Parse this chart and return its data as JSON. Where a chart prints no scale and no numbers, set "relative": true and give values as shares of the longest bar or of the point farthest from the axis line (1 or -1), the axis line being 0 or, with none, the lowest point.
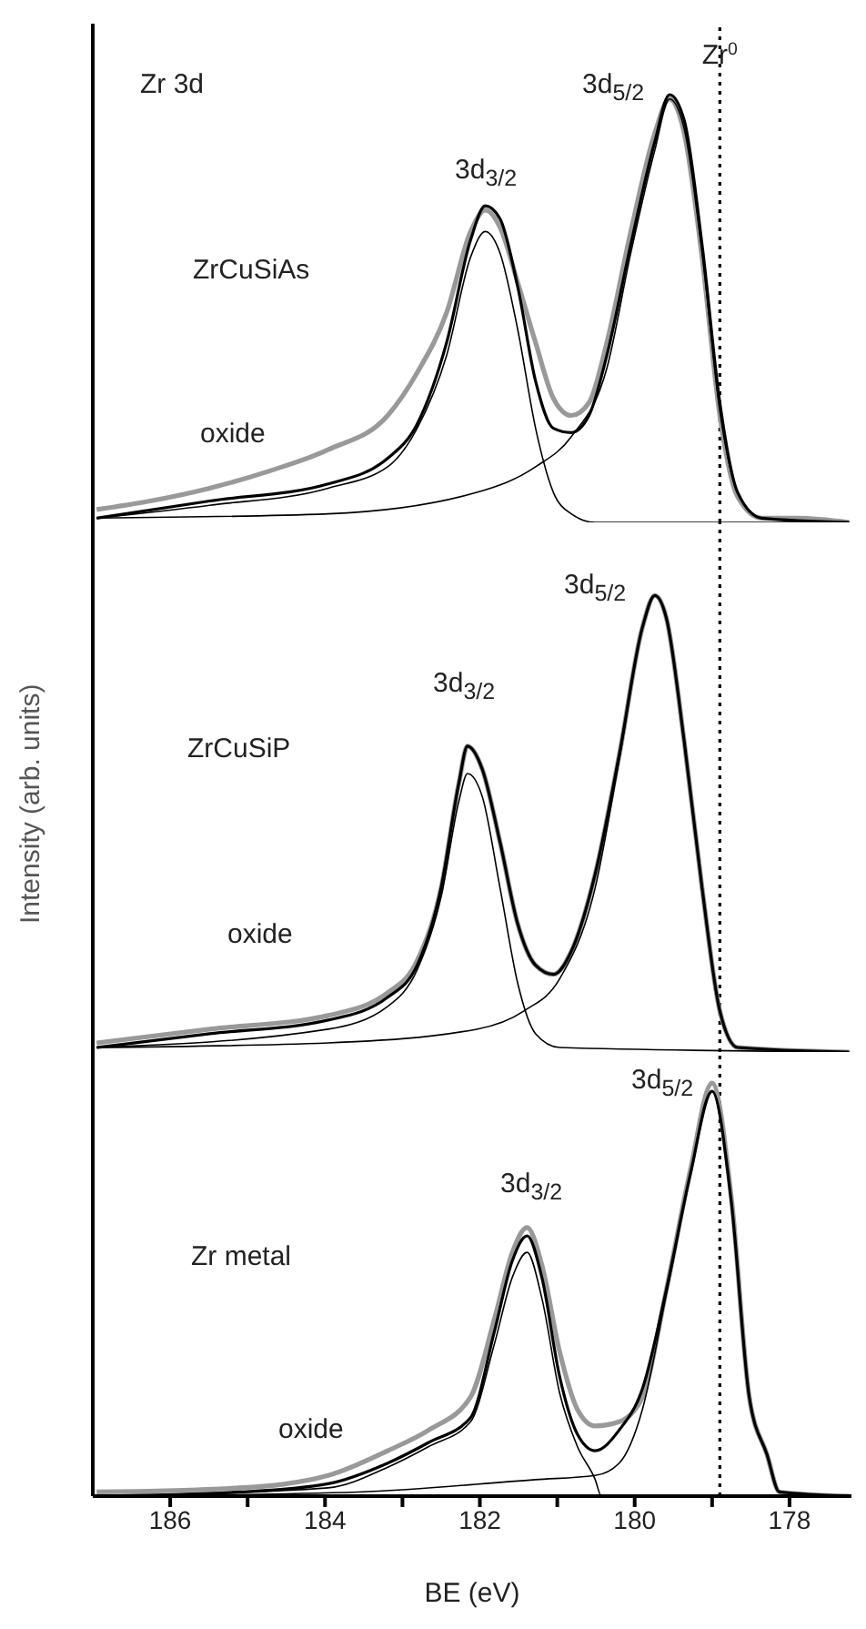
{
  "chart_data": [
    {
      "type": "line",
      "relative": true,
      "xlim": [
        187,
        177.2
      ],
      "xticks": [
        186,
        184,
        182,
        180,
        178
      ],
      "tick_labels": false,
      "series": [
        {
          "color": "#999999",
          "x": [
            186.95,
            186.26,
            185.49,
            184.72,
            183.96,
            183.19,
            182.81,
            182.43,
            182.12,
            181.93,
            181.74,
            181.51,
            181.28,
            181.05,
            180.82,
            180.59,
            180.36,
            180.05,
            179.74,
            179.55,
            179.36,
            179.13,
            178.9,
            178.67,
            178.36,
            177.9,
            177.23
          ],
          "values": [
            0.03,
            0.05,
            0.08,
            0.12,
            0.17,
            0.25,
            0.35,
            0.49,
            0.68,
            0.73,
            0.69,
            0.56,
            0.42,
            0.29,
            0.25,
            0.28,
            0.42,
            0.68,
            0.91,
            0.99,
            0.91,
            0.62,
            0.25,
            0.06,
            0.01,
            0.01,
            0
          ]
        },
        {
          "color": "#000000",
          "x": [
            186.95,
            185.49,
            183.96,
            183.19,
            182.81,
            182.43,
            182.12,
            181.93,
            181.74,
            181.51,
            181.28,
            181.05,
            180.82,
            180.59,
            180.36,
            180.05,
            179.74,
            179.55,
            179.36,
            179.13,
            178.9,
            178.67,
            178.36,
            177.23
          ],
          "values": [
            0.01,
            0.05,
            0.09,
            0.15,
            0.23,
            0.42,
            0.66,
            0.74,
            0.71,
            0.55,
            0.33,
            0.22,
            0.21,
            0.25,
            0.39,
            0.65,
            0.89,
            1.0,
            0.94,
            0.65,
            0.28,
            0.07,
            0.01,
            0
          ]
        },
        {
          "color": "#000000",
          "x": [
            186.95,
            185.49,
            183.96,
            183.19,
            182.81,
            182.43,
            182.12,
            181.93,
            181.74,
            181.51,
            181.28,
            181.05,
            180.82,
            180.51,
            177.23
          ],
          "values": [
            0.01,
            0.04,
            0.08,
            0.13,
            0.22,
            0.39,
            0.62,
            0.68,
            0.63,
            0.45,
            0.22,
            0.07,
            0.02,
            0,
            0
          ]
        },
        {
          "color": "#000000",
          "x": [
            186.95,
            183.96,
            182.04,
            181.28,
            180.82,
            180.36,
            180.05,
            179.74,
            179.55,
            179.36,
            179.13,
            178.9,
            178.67,
            178.36,
            177.23
          ],
          "values": [
            0.01,
            0.02,
            0.07,
            0.13,
            0.2,
            0.36,
            0.63,
            0.87,
            0.99,
            0.92,
            0.63,
            0.26,
            0.07,
            0.01,
            0
          ]
        }
      ],
      "ref_lines": [
        {
          "axis": "x",
          "value": 178.9,
          "label": "Zr$^{0}$",
          "line_style": "dotted"
        }
      ],
      "annotations": [
        "Zr 3d",
        "ZrCuSiAs",
        "3d$_{3/2}$",
        "3d$_{5/2}$",
        "oxide"
      ]
    },
    {
      "type": "line",
      "relative": true,
      "xlim": [
        187,
        177.2
      ],
      "xticks": [
        186,
        184,
        182,
        180,
        178
      ],
      "tick_labels": false,
      "ylabel": "Intensity (arb. units)",
      "series": [
        {
          "color": "#999999",
          "x": [
            186.95,
            185.49,
            183.96,
            183.19,
            182.81,
            182.5,
            182.27,
            182.16,
            181.97,
            181.74,
            181.51,
            181.28,
            181.05,
            180.82,
            180.51,
            180.2,
            179.9,
            179.74,
            179.59,
            179.36,
            179.13,
            178.9,
            178.67,
            177.23
          ],
          "values": [
            0.02,
            0.05,
            0.08,
            0.13,
            0.2,
            0.36,
            0.59,
            0.67,
            0.62,
            0.46,
            0.28,
            0.19,
            0.17,
            0.22,
            0.39,
            0.65,
            0.93,
            1.0,
            0.95,
            0.68,
            0.36,
            0.09,
            0.01,
            0
          ]
        },
        {
          "color": "#000000",
          "x": [
            186.95,
            185.49,
            183.96,
            183.19,
            182.81,
            182.5,
            182.27,
            182.16,
            181.97,
            181.74,
            181.51,
            181.28,
            181.05,
            180.82,
            180.51,
            180.2,
            179.9,
            179.74,
            179.59,
            179.36,
            179.13,
            178.9,
            178.67,
            177.23
          ],
          "values": [
            0.01,
            0.04,
            0.07,
            0.12,
            0.19,
            0.36,
            0.59,
            0.67,
            0.62,
            0.46,
            0.28,
            0.19,
            0.17,
            0.22,
            0.39,
            0.65,
            0.93,
            1.0,
            0.95,
            0.68,
            0.36,
            0.09,
            0.01,
            0
          ]
        },
        {
          "color": "#000000",
          "x": [
            186.95,
            183.96,
            183.19,
            182.81,
            182.5,
            182.27,
            182.16,
            181.97,
            181.74,
            181.51,
            181.28,
            180.97,
            177.23
          ],
          "values": [
            0.01,
            0.05,
            0.1,
            0.18,
            0.34,
            0.55,
            0.61,
            0.56,
            0.36,
            0.15,
            0.04,
            0.01,
            0
          ]
        },
        {
          "color": "#000000",
          "x": [
            186.95,
            183.96,
            182.04,
            181.43,
            180.97,
            180.51,
            180.2,
            179.9,
            179.74,
            179.59,
            179.36,
            179.13,
            178.9,
            178.67,
            177.23
          ],
          "values": [
            0.01,
            0.02,
            0.05,
            0.09,
            0.16,
            0.36,
            0.64,
            0.93,
            1.0,
            0.95,
            0.68,
            0.36,
            0.09,
            0.01,
            0
          ]
        }
      ],
      "ref_lines": [
        {
          "axis": "x",
          "value": 178.9,
          "line_style": "dotted"
        }
      ],
      "annotations": [
        "ZrCuSiP",
        "3d$_{3/2}$",
        "3d$_{5/2}$",
        "oxide"
      ]
    },
    {
      "type": "line",
      "relative": true,
      "xlim": [
        187,
        177.2
      ],
      "xticks": [
        186,
        {
          "value": 185,
          "label": null
        },
        184,
        {
          "value": 183,
          "label": null
        },
        182,
        {
          "value": 181,
          "label": null
        },
        180,
        {
          "value": 179,
          "label": null
        },
        178
      ],
      "tick_labels": "x",
      "xlabel": "BE (eV)",
      "series": [
        {
          "color": "#999999",
          "x": [
            186.95,
            185.11,
            183.96,
            183.19,
            182.66,
            182.12,
            181.81,
            181.58,
            181.39,
            181.2,
            180.97,
            180.74,
            180.51,
            180.2,
            179.9,
            179.59,
            179.28,
            179.0,
            178.75,
            178.52,
            178.29,
            178.13,
            177.23
          ],
          "values": [
            0.01,
            0.02,
            0.05,
            0.11,
            0.16,
            0.24,
            0.43,
            0.59,
            0.65,
            0.56,
            0.35,
            0.21,
            0.17,
            0.18,
            0.24,
            0.5,
            0.79,
            1.0,
            0.72,
            0.24,
            0.1,
            0.01,
            0
          ]
        },
        {
          "color": "#000000",
          "x": [
            186.95,
            185.11,
            183.96,
            183.19,
            182.66,
            182.12,
            181.81,
            181.58,
            181.39,
            181.2,
            180.97,
            180.74,
            180.51,
            180.2,
            179.9,
            179.59,
            179.28,
            179.0,
            178.75,
            178.52,
            178.29,
            178.13,
            177.23
          ],
          "values": [
            0,
            0.01,
            0.03,
            0.08,
            0.13,
            0.19,
            0.4,
            0.57,
            0.63,
            0.53,
            0.29,
            0.15,
            0.11,
            0.16,
            0.26,
            0.5,
            0.78,
            0.98,
            0.71,
            0.24,
            0.1,
            0.01,
            0
          ]
        },
        {
          "color": "#000000",
          "x": [
            186.95,
            183.96,
            183.19,
            182.66,
            182.12,
            181.81,
            181.58,
            181.39,
            181.2,
            180.97,
            180.74,
            180.51,
            180.43,
            177.23
          ],
          "values": [
            0,
            0.02,
            0.07,
            0.12,
            0.18,
            0.37,
            0.53,
            0.59,
            0.48,
            0.25,
            0.12,
            0.04,
            0,
            0
          ]
        },
        {
          "color": "#000000",
          "x": [
            186.95,
            183.57,
            181.28,
            180.51,
            180.2,
            179.9,
            179.59,
            179.28,
            179.0,
            178.75,
            178.52,
            178.29,
            178.13,
            177.23
          ],
          "values": [
            0,
            0.01,
            0.04,
            0.05,
            0.08,
            0.21,
            0.49,
            0.78,
            0.98,
            0.71,
            0.24,
            0.1,
            0.01,
            0
          ]
        }
      ],
      "ref_lines": [
        {
          "axis": "x",
          "value": 178.9,
          "line_style": "dotted"
        }
      ],
      "annotations": [
        "Zr metal",
        "3d$_{3/2}$",
        "3d$_{5/2}$",
        "oxide"
      ]
    }
  ]
}
